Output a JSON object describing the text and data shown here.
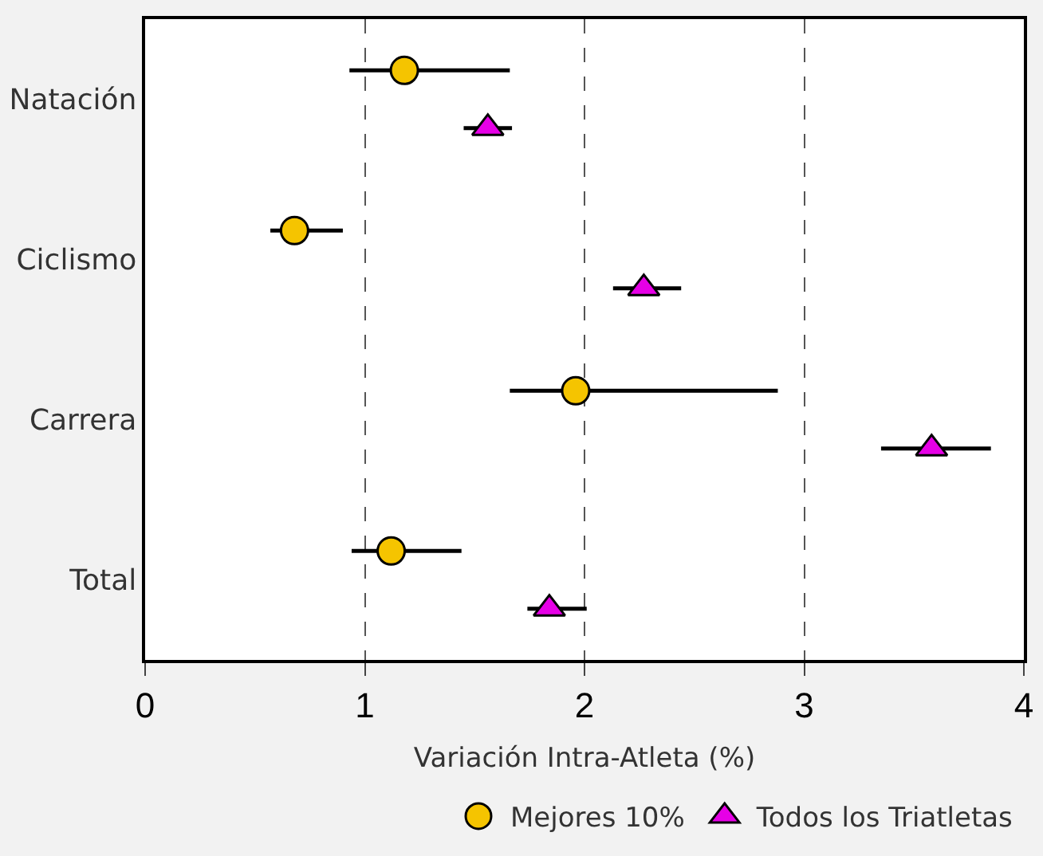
{
  "chart_data": {
    "type": "scatter",
    "orientation": "horizontal",
    "xlabel": "Variación Intra-Atleta (%)",
    "categories": [
      "Natación",
      "Ciclismo",
      "Carrera",
      "Total"
    ],
    "xlim": [
      0,
      4
    ],
    "xticks": [
      0,
      1,
      2,
      3,
      4
    ],
    "grid": "x",
    "legend": "bottom",
    "series": [
      {
        "name": "Mejores 10%",
        "color": "#f5c400",
        "marker": "circle",
        "values": [
          1.18,
          0.68,
          1.96,
          1.12
        ],
        "errors": [
          [
            0.93,
            1.66
          ],
          [
            0.57,
            0.9
          ],
          [
            1.66,
            2.88
          ],
          [
            0.94,
            1.44
          ]
        ]
      },
      {
        "name": "Todos los Triatletas",
        "color": "#e600e6",
        "marker": "triangle",
        "values": [
          1.56,
          2.27,
          3.58,
          1.84
        ],
        "errors": [
          [
            1.45,
            1.67
          ],
          [
            2.13,
            2.44
          ],
          [
            3.35,
            3.85
          ],
          [
            1.74,
            2.01
          ]
        ]
      }
    ]
  }
}
